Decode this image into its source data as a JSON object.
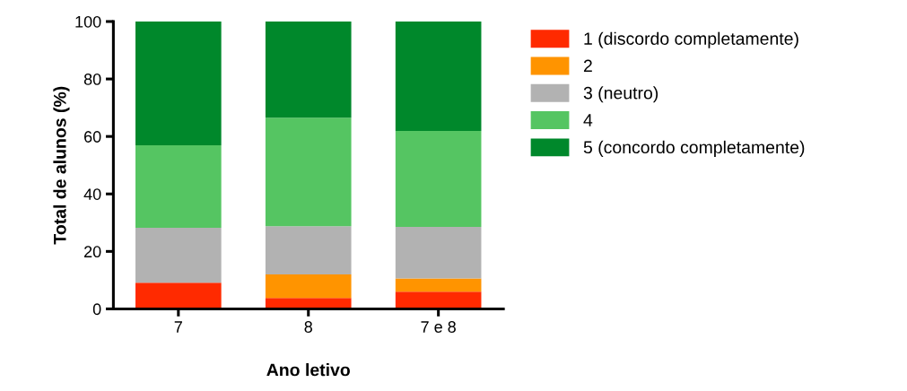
{
  "chart_data": {
    "type": "bar",
    "stacked": true,
    "xlabel": "Ano letivo",
    "ylabel": "Total de alunos (%)",
    "categories": [
      "7",
      "8",
      "7 e 8"
    ],
    "series": [
      {
        "name": "1 (discordo completamente)",
        "color": "#ff2a00",
        "values": [
          9.1,
          3.8,
          6.0
        ]
      },
      {
        "name": "2",
        "color": "#ff9400",
        "values": [
          0,
          8.2,
          4.6
        ]
      },
      {
        "name": "3 (neutro)",
        "color": "#b2b2b2",
        "values": [
          19.1,
          16.8,
          17.9
        ]
      },
      {
        "name": "4",
        "color": "#55c562",
        "values": [
          28.7,
          37.7,
          33.4
        ]
      },
      {
        "name": "5 (concordo completamente)",
        "color": "#00882b",
        "values": [
          43.1,
          33.5,
          38.1
        ]
      }
    ],
    "ylim": [
      0,
      100
    ],
    "yticks": [
      0,
      20,
      40,
      60,
      80,
      100
    ],
    "grid": false,
    "legend": "right"
  }
}
